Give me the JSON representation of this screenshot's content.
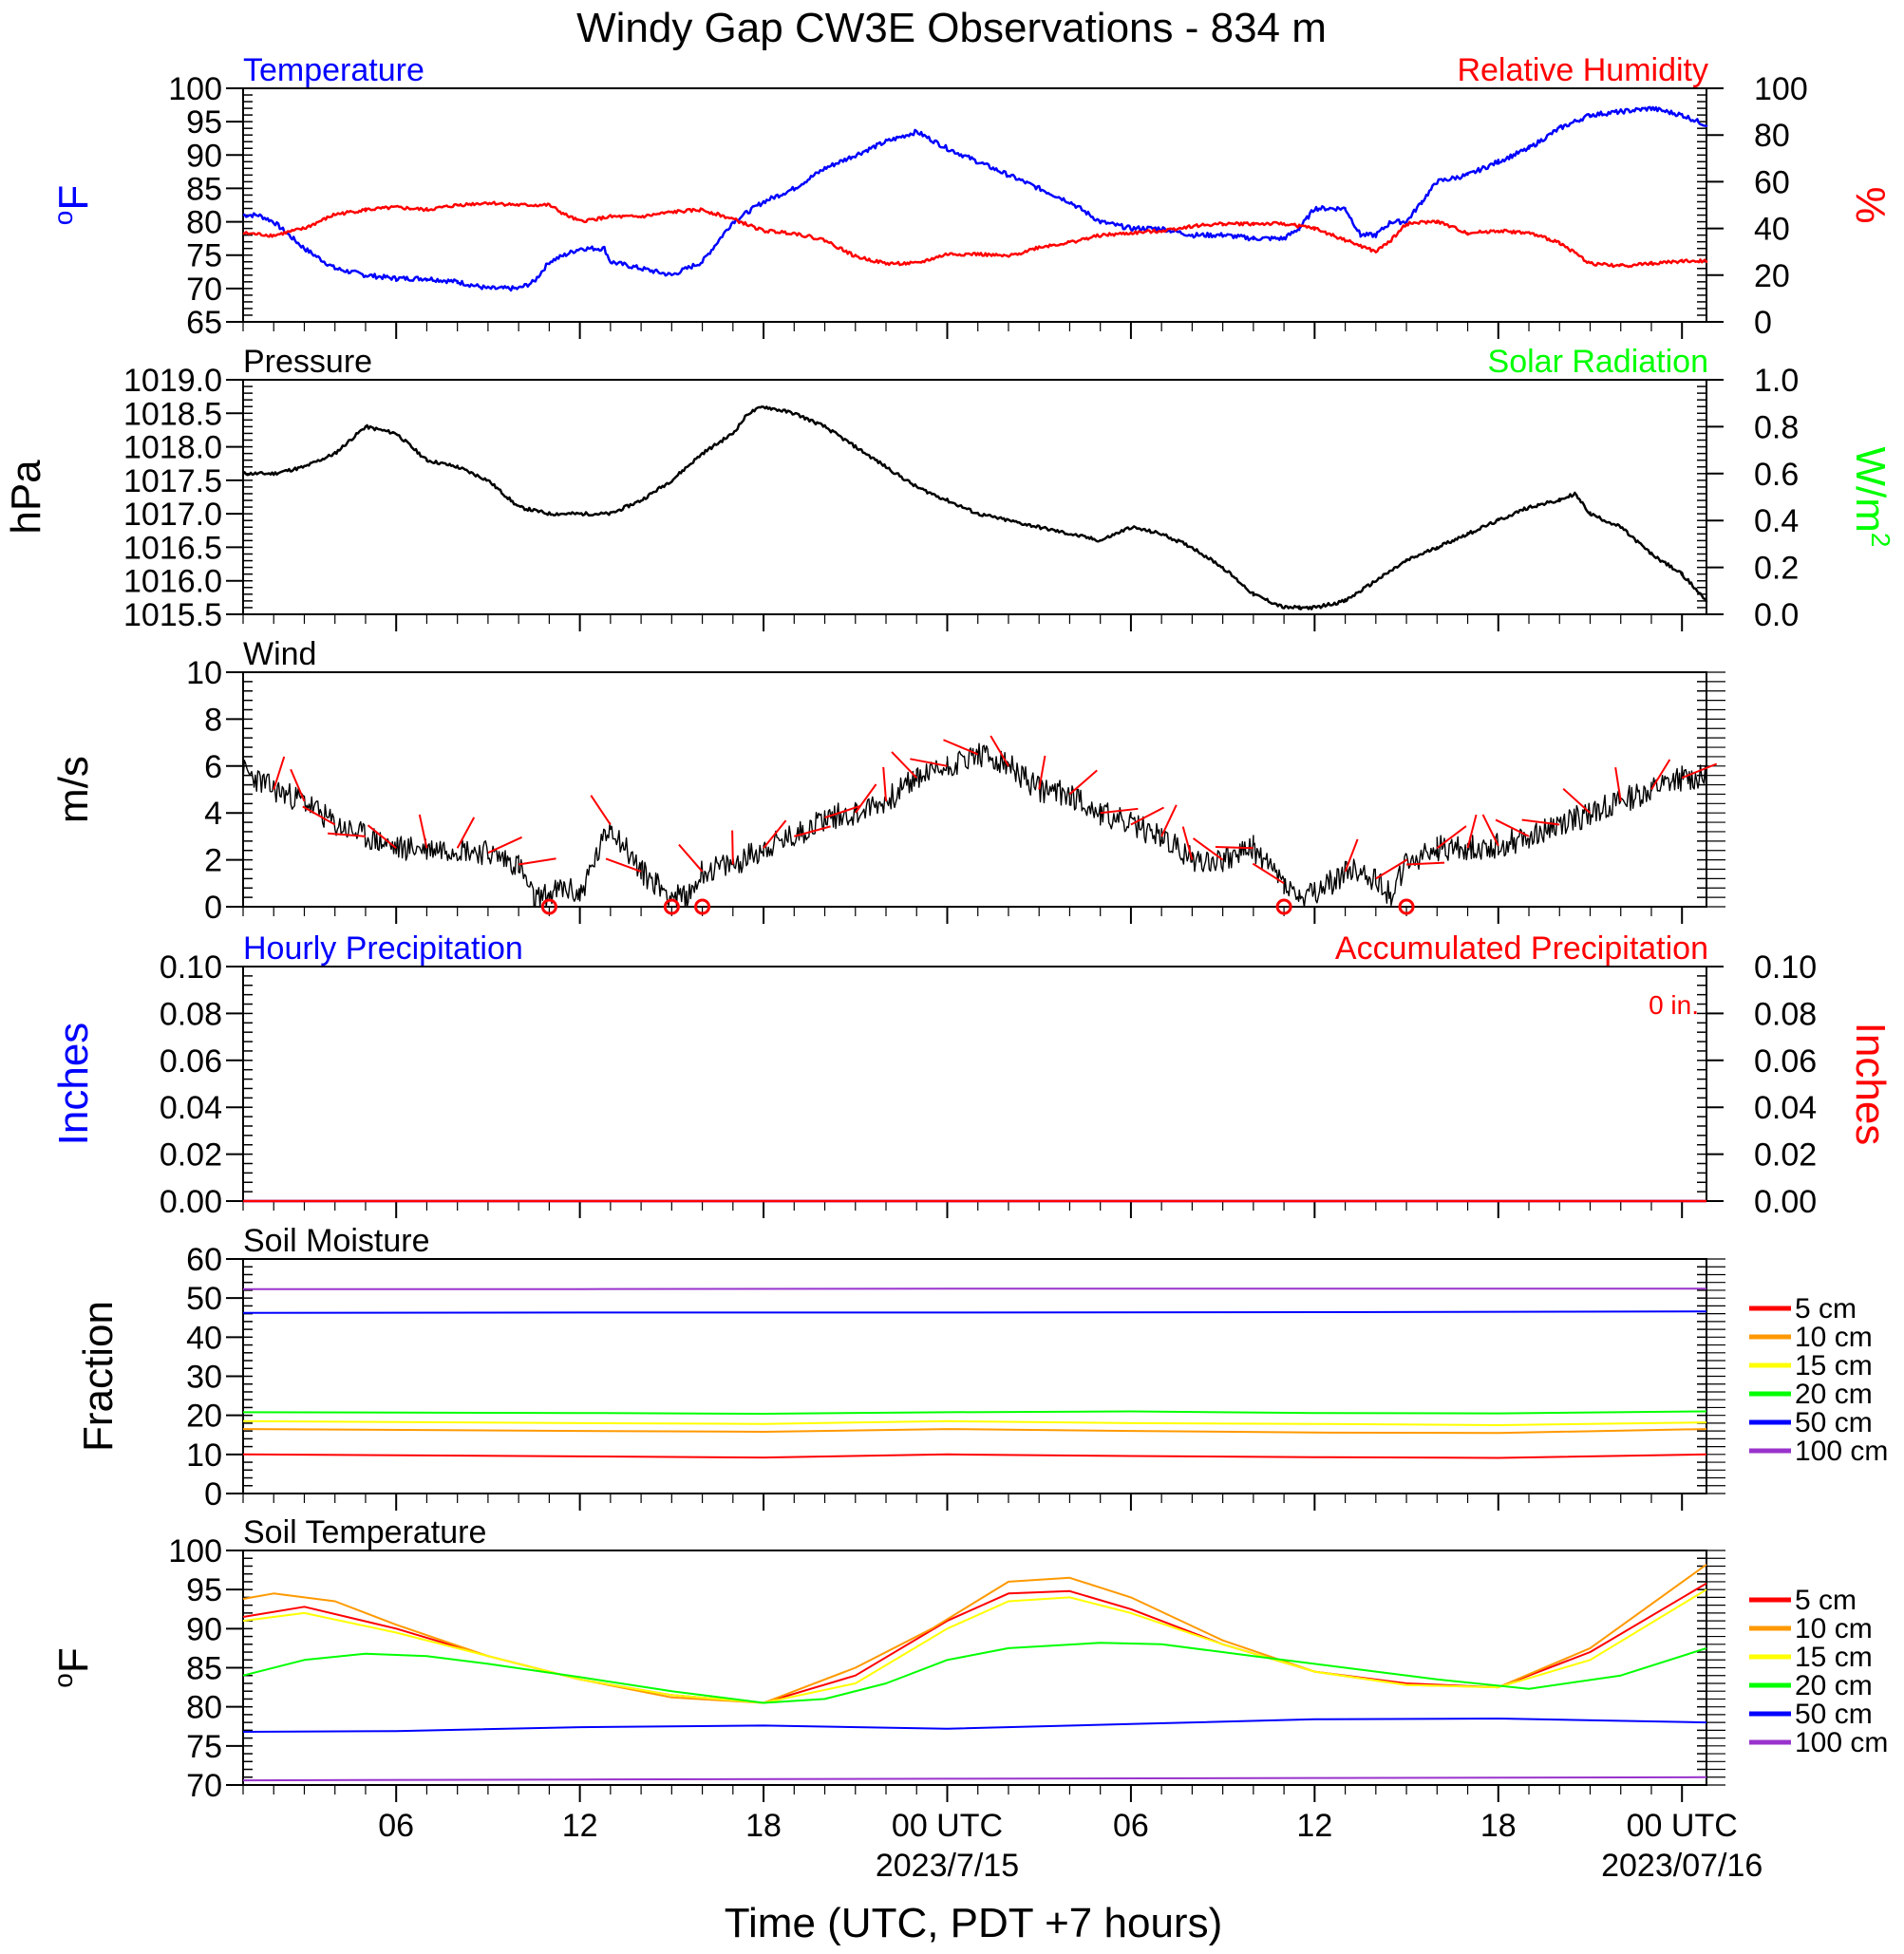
{
  "page_title": "Windy Gap CW3E Observations - 834 m",
  "xaxis": {
    "label": "Time (UTC, PDT +7 hours)",
    "ticks": [
      "06",
      "12",
      "18",
      "00 UTC",
      "06",
      "12",
      "18",
      "00 UTC"
    ],
    "dates": [
      "2023/7/15",
      "2023/07/16"
    ]
  },
  "chart_data": [
    {
      "id": "temp-rh",
      "type": "line",
      "title_left": "Temperature",
      "title_right": "Relative Humidity",
      "ylabel_left": "oF",
      "ylabel_right": "%",
      "ylim_left": [
        65,
        100
      ],
      "ylim_right": [
        0,
        100
      ],
      "yticks_left": [
        "65",
        "70",
        "75",
        "80",
        "85",
        "90",
        "95",
        "100"
      ],
      "yticks_right": [
        "0",
        "20",
        "40",
        "60",
        "80",
        "100"
      ],
      "colors": {
        "left": "#0000ff",
        "right": "#ff0000"
      },
      "series": [
        {
          "axis": "left",
          "color": "#0000ff",
          "x": [
            1,
            1.5,
            2,
            3,
            4,
            5,
            6,
            7,
            8,
            9,
            10,
            10.5,
            11,
            12,
            12.8,
            13,
            14,
            15,
            16,
            17,
            18,
            19,
            20,
            21,
            22,
            23,
            24,
            25,
            26,
            27,
            28,
            29,
            30,
            31,
            32,
            33,
            34,
            35,
            35.5,
            36,
            37,
            37.5,
            38,
            38.5,
            39,
            39.5,
            40,
            41,
            42,
            43,
            44,
            45,
            46,
            47,
            48,
            48.8
          ],
          "y": [
            81,
            81,
            80,
            76,
            73,
            72,
            71.5,
            71.5,
            71,
            70,
            70,
            71,
            74,
            76,
            76,
            74,
            73,
            72,
            74,
            80,
            83,
            85,
            88,
            90,
            92,
            93.5,
            91,
            89,
            87,
            85,
            83,
            80,
            79,
            79,
            78,
            78,
            77.5,
            77.5,
            79,
            82,
            82,
            78,
            78,
            80,
            80,
            83,
            86,
            87,
            89,
            91,
            94,
            96,
            96.5,
            97,
            96,
            94.5
          ]
        },
        {
          "axis": "right",
          "color": "#ff0000",
          "x": [
            1,
            2,
            3,
            4,
            5,
            6,
            7,
            8,
            9,
            10,
            11,
            11.5,
            12,
            13,
            14,
            15,
            16,
            17,
            18,
            19,
            20,
            21,
            22,
            23,
            24,
            25,
            26,
            27,
            28,
            29,
            30,
            31,
            32,
            33,
            34,
            35,
            36,
            37,
            38,
            38.5,
            39,
            40,
            41,
            42,
            43,
            44,
            45,
            46,
            47,
            48,
            48.8
          ],
          "y": [
            38,
            37,
            40,
            46,
            48,
            49,
            48,
            50,
            51,
            50,
            50,
            46,
            43,
            45,
            45,
            47,
            48,
            44,
            39,
            38,
            35,
            28,
            25,
            25,
            29,
            29,
            28,
            32,
            34,
            37,
            38,
            39,
            41,
            42,
            42,
            42,
            40,
            35,
            30,
            35,
            42,
            43,
            38,
            39,
            38,
            34,
            25,
            24,
            25,
            26,
            26
          ]
        }
      ]
    },
    {
      "id": "pressure",
      "type": "line",
      "title_left": "Pressure",
      "title_right": "Solar Radiation",
      "ylabel_left": "hPa",
      "ylabel_right": "W/m2",
      "ylim_left": [
        1015.5,
        1019.0
      ],
      "ylim_right": [
        0.0,
        1.0
      ],
      "yticks_left": [
        "1015.5",
        "1016.0",
        "1016.5",
        "1017.0",
        "1017.5",
        "1018.0",
        "1018.5",
        "1019.0"
      ],
      "yticks_right": [
        "0.0",
        "0.2",
        "0.4",
        "0.6",
        "0.8",
        "1.0"
      ],
      "colors": {
        "left": "#000000",
        "right": "#00ff00"
      },
      "series": [
        {
          "axis": "left",
          "color": "#000000",
          "x": [
            1,
            2,
            3,
            4,
            5,
            6,
            7,
            8,
            9,
            10,
            11,
            12,
            13,
            14,
            15,
            16,
            17,
            17.5,
            18,
            19,
            20,
            21,
            22,
            23,
            24,
            25,
            26,
            27,
            28,
            29,
            30,
            31,
            32,
            33,
            34,
            35,
            35.5,
            36,
            37,
            38,
            39,
            40,
            41,
            42,
            43,
            44,
            44.5,
            45,
            46,
            47,
            48,
            48.8
          ],
          "y": [
            1017.6,
            1017.6,
            1017.7,
            1017.9,
            1018.3,
            1018.2,
            1017.8,
            1017.7,
            1017.5,
            1017.1,
            1017.0,
            1017.0,
            1017.0,
            1017.2,
            1017.5,
            1017.9,
            1018.2,
            1018.5,
            1018.6,
            1018.5,
            1018.3,
            1018.0,
            1017.7,
            1017.4,
            1017.2,
            1017.0,
            1016.9,
            1016.8,
            1016.7,
            1016.6,
            1016.8,
            1016.7,
            1016.5,
            1016.2,
            1015.8,
            1015.6,
            1015.6,
            1015.6,
            1015.7,
            1016.0,
            1016.3,
            1016.5,
            1016.7,
            1016.9,
            1017.1,
            1017.2,
            1017.3,
            1017.0,
            1016.8,
            1016.4,
            1016.1,
            1015.7
          ]
        }
      ]
    },
    {
      "id": "wind",
      "type": "line",
      "title_left": "Wind",
      "ylabel_left": "m/s",
      "ylim_left": [
        0,
        10
      ],
      "yticks_left": [
        "0",
        "2",
        "4",
        "6",
        "8",
        "10"
      ],
      "colors": {
        "line": "#000000",
        "barbs": "#ff0000"
      },
      "series": [
        {
          "axis": "left",
          "color": "#000000",
          "x": [
            1,
            2,
            3,
            4,
            5,
            6,
            7,
            8,
            9,
            10,
            10.5,
            11,
            11.5,
            12,
            12.5,
            13,
            14,
            14.5,
            15,
            15.5,
            16,
            17,
            18,
            19,
            20,
            21,
            22,
            23,
            24,
            25,
            26,
            27,
            28,
            29,
            30,
            31,
            32,
            33,
            34,
            35,
            35.5,
            36,
            36.5,
            37,
            37.5,
            38,
            38.5,
            39,
            40,
            41,
            42,
            43,
            44,
            45,
            46,
            47,
            48,
            48.8
          ],
          "y": [
            5.8,
            5.0,
            4.5,
            3.5,
            3.0,
            2.5,
            2.5,
            2.5,
            2.3,
            1.8,
            0.3,
            0.5,
            0.8,
            0.5,
            2.0,
            3.5,
            1.5,
            1.0,
            0.5,
            0.3,
            1.5,
            1.8,
            2.5,
            3.0,
            3.8,
            4.0,
            4.5,
            5.5,
            6.0,
            6.5,
            6.0,
            5.0,
            4.8,
            4.0,
            3.5,
            3.0,
            2.0,
            2.0,
            2.5,
            1.0,
            0.3,
            0.5,
            1.0,
            1.5,
            1.5,
            1.2,
            0.5,
            1.8,
            2.5,
            2.5,
            2.6,
            3.0,
            3.5,
            4.0,
            4.5,
            5.0,
            5.5,
            5.5
          ]
        },
        {
          "type": "calm-markers",
          "color": "#ff0000",
          "x": [
            11,
            15,
            16,
            35,
            39
          ],
          "y": [
            0,
            0,
            0,
            0,
            0
          ]
        }
      ]
    },
    {
      "id": "precip",
      "type": "line",
      "title_left": "Hourly Precipitation",
      "title_right": "Accumulated Precipitation",
      "annotation": "0 in.",
      "ylabel_left": "Inches",
      "ylabel_right": "Inches",
      "ylim_left": [
        0,
        0.1
      ],
      "ylim_right": [
        0,
        0.1
      ],
      "yticks_left": [
        "0.00",
        "0.02",
        "0.04",
        "0.06",
        "0.08",
        "0.10"
      ],
      "yticks_right": [
        "0.00",
        "0.02",
        "0.04",
        "0.06",
        "0.08",
        "0.10"
      ],
      "colors": {
        "left": "#0000ff",
        "right": "#ff0000"
      },
      "series": [
        {
          "axis": "left",
          "color": "#0000ff",
          "x": [
            1,
            48.8
          ],
          "y": [
            0,
            0
          ]
        },
        {
          "axis": "right",
          "color": "#ff0000",
          "x": [
            1,
            48.8
          ],
          "y": [
            0,
            0
          ]
        }
      ]
    },
    {
      "id": "soil-moisture",
      "type": "line",
      "title_left": "Soil Moisture",
      "ylabel_left": "Fraction",
      "ylim_left": [
        0,
        60
      ],
      "yticks_left": [
        "0",
        "10",
        "20",
        "30",
        "40",
        "50",
        "60"
      ],
      "legend": "right",
      "series": [
        {
          "name": "5 cm",
          "color": "#ff0000",
          "x": [
            1,
            12,
            18,
            24,
            30,
            36,
            42,
            48.8
          ],
          "y": [
            10,
            9.5,
            9.2,
            10,
            9.6,
            9.3,
            9.1,
            10
          ]
        },
        {
          "name": "10 cm",
          "color": "#ff9900",
          "x": [
            1,
            12,
            18,
            24,
            30,
            36,
            42,
            48.8
          ],
          "y": [
            16.5,
            16,
            15.8,
            16.5,
            16,
            15.6,
            15.5,
            16.5
          ]
        },
        {
          "name": "15 cm",
          "color": "#ffff00",
          "x": [
            1,
            12,
            18,
            24,
            30,
            36,
            42,
            48.8
          ],
          "y": [
            18.5,
            18,
            17.8,
            18.5,
            18,
            17.8,
            17.5,
            18.2
          ]
        },
        {
          "name": "20 cm",
          "color": "#00ff00",
          "x": [
            1,
            12,
            18,
            24,
            30,
            36,
            42,
            48.8
          ],
          "y": [
            20.8,
            20.6,
            20.4,
            20.8,
            21,
            20.6,
            20.5,
            21
          ]
        },
        {
          "name": "50 cm",
          "color": "#0000ff",
          "x": [
            1,
            12,
            24,
            36,
            48.8
          ],
          "y": [
            46.2,
            46.3,
            46.3,
            46.4,
            46.6
          ]
        },
        {
          "name": "100 cm",
          "color": "#9933cc",
          "x": [
            1,
            12,
            24,
            36,
            48.8
          ],
          "y": [
            52.3,
            52.3,
            52.4,
            52.4,
            52.4
          ]
        }
      ]
    },
    {
      "id": "soil-temp",
      "type": "line",
      "title_left": "Soil Temperature",
      "ylabel_left": "oF",
      "ylim_left": [
        70,
        100
      ],
      "yticks_left": [
        "70",
        "75",
        "80",
        "85",
        "90",
        "95",
        "100"
      ],
      "legend": "right",
      "series": [
        {
          "name": "5 cm",
          "color": "#ff0000",
          "x": [
            1,
            3,
            6,
            9,
            12,
            15,
            18,
            21,
            24,
            26,
            28,
            30,
            33,
            36,
            39,
            42,
            45,
            48.8
          ],
          "y": [
            91.5,
            92.8,
            90,
            86.5,
            83.5,
            81.5,
            80.5,
            84,
            91,
            94.5,
            94.8,
            92.5,
            88,
            84.5,
            83,
            82.5,
            87,
            95.8
          ]
        },
        {
          "name": "10 cm",
          "color": "#ff9900",
          "x": [
            1,
            2,
            4,
            6,
            9,
            12,
            15,
            18,
            21,
            23.5,
            26,
            28,
            30,
            33,
            36,
            39,
            42,
            45,
            48.8
          ],
          "y": [
            93.8,
            94.5,
            93.5,
            90.5,
            86.5,
            83.5,
            81.2,
            80.5,
            85,
            90,
            96,
            96.5,
            94,
            88.5,
            84.5,
            82.8,
            82.5,
            87.5,
            98.2
          ]
        },
        {
          "name": "15 cm",
          "color": "#ffff00",
          "x": [
            1,
            3,
            6,
            9,
            12,
            15,
            18,
            21,
            24,
            26,
            28,
            30,
            33,
            36,
            39,
            42,
            45,
            48.8
          ],
          "y": [
            91,
            92,
            89.5,
            86.5,
            83.5,
            81.5,
            80.5,
            83,
            90,
            93.5,
            94,
            92,
            88,
            84.5,
            82.8,
            82.5,
            86,
            95
          ]
        },
        {
          "name": "20 cm",
          "color": "#00ff00",
          "x": [
            1,
            3,
            5,
            7,
            9,
            12,
            15,
            18,
            20,
            22,
            24,
            26,
            29,
            31,
            34,
            37,
            40,
            43,
            46,
            48.8
          ],
          "y": [
            84,
            86,
            86.8,
            86.5,
            85.5,
            83.8,
            82,
            80.5,
            81,
            83,
            86,
            87.5,
            88.2,
            88,
            86.5,
            85,
            83.5,
            82.3,
            84,
            87.5
          ]
        },
        {
          "name": "50 cm",
          "color": "#0000ff",
          "x": [
            1,
            6,
            12,
            18,
            24,
            30,
            36,
            42,
            48.8
          ],
          "y": [
            76.8,
            76.9,
            77.4,
            77.6,
            77.2,
            77.8,
            78.4,
            78.5,
            78
          ]
        },
        {
          "name": "100 cm",
          "color": "#9933cc",
          "x": [
            1,
            12,
            24,
            36,
            48.8
          ],
          "y": [
            70.6,
            70.7,
            70.8,
            70.9,
            71
          ]
        }
      ]
    }
  ]
}
